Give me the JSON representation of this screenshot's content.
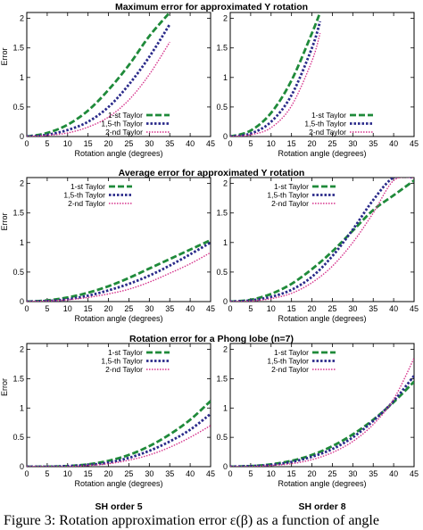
{
  "caption": "Figure 3: Rotation approximation error ε(β) as a function of angle",
  "colors": {
    "taylor1": "#1f8a3a",
    "taylor15": "#2a2a8a",
    "taylor2": "#d6338c"
  },
  "column_titles": [
    "SH order 5",
    "SH order 8"
  ],
  "chart_data": [
    {
      "type": "line",
      "title": "Maximum error for approximated Y rotation",
      "subtitle": "SH order 5",
      "xlabel": "Rotation angle (degrees)",
      "ylabel": "Error",
      "xlim": [
        0,
        45
      ],
      "ylim": [
        0,
        2.1
      ],
      "xticks": [
        0,
        5,
        10,
        15,
        20,
        25,
        30,
        35,
        40,
        45
      ],
      "yticks": [
        0,
        0.5,
        1,
        1.5,
        2
      ],
      "yticklabels": [
        "0",
        "0.5",
        "1",
        "1.5",
        "2"
      ],
      "legend_position": "bottom-right",
      "x": [
        0,
        5,
        10,
        15,
        20,
        25,
        30,
        35
      ],
      "series": [
        {
          "name": "1-st Taylor",
          "values": [
            0,
            0.06,
            0.2,
            0.44,
            0.79,
            1.21,
            1.7,
            2.1
          ]
        },
        {
          "name": "1,5-th Taylor",
          "values": [
            0,
            0.03,
            0.11,
            0.25,
            0.5,
            0.88,
            1.35,
            1.9
          ]
        },
        {
          "name": "2-nd Taylor",
          "values": [
            0,
            0.02,
            0.06,
            0.16,
            0.33,
            0.62,
            1.05,
            1.6
          ]
        }
      ]
    },
    {
      "type": "line",
      "title": "",
      "subtitle": "SH order 8",
      "xlabel": "Rotation angle (degrees)",
      "ylabel": "",
      "xlim": [
        0,
        45
      ],
      "ylim": [
        0,
        2.1
      ],
      "xticks": [
        0,
        5,
        10,
        15,
        20,
        25,
        30,
        35,
        40,
        45
      ],
      "yticks": [
        0,
        0.5,
        1,
        1.5,
        2
      ],
      "yticklabels": [
        "0",
        "0.5",
        "1",
        "1.5",
        "2"
      ],
      "legend_position": "bottom-right",
      "x": [
        0,
        5,
        10,
        15,
        20,
        22
      ],
      "series": [
        {
          "name": "1-st Taylor",
          "values": [
            0,
            0.1,
            0.4,
            0.95,
            1.75,
            2.1
          ]
        },
        {
          "name": "1,5-th Taylor",
          "values": [
            0,
            0.05,
            0.25,
            0.7,
            1.5,
            1.95
          ]
        },
        {
          "name": "2-nd Taylor",
          "values": [
            0,
            0.03,
            0.15,
            0.52,
            1.28,
            1.75
          ]
        }
      ]
    },
    {
      "type": "line",
      "title": "Average error for approximated Y rotation",
      "subtitle": "SH order 5",
      "xlabel": "Rotation angle (degrees)",
      "ylabel": "Error",
      "xlim": [
        0,
        45
      ],
      "ylim": [
        0,
        2.1
      ],
      "xticks": [
        0,
        5,
        10,
        15,
        20,
        25,
        30,
        35,
        40,
        45
      ],
      "yticks": [
        0,
        0.5,
        1,
        1.5,
        2
      ],
      "yticklabels": [
        "0",
        "0.5",
        "1",
        "1.5",
        "2"
      ],
      "legend_position": "top-left",
      "x": [
        0,
        5,
        10,
        15,
        20,
        25,
        30,
        35,
        40,
        45
      ],
      "series": [
        {
          "name": "1-st Taylor",
          "values": [
            0,
            0.02,
            0.07,
            0.15,
            0.26,
            0.4,
            0.56,
            0.72,
            0.88,
            1.04
          ]
        },
        {
          "name": "1,5-th Taylor",
          "values": [
            0,
            0.01,
            0.04,
            0.1,
            0.19,
            0.3,
            0.44,
            0.61,
            0.8,
            1.0
          ]
        },
        {
          "name": "2-nd Taylor",
          "values": [
            0,
            0.01,
            0.03,
            0.07,
            0.13,
            0.21,
            0.33,
            0.48,
            0.64,
            0.83
          ]
        }
      ]
    },
    {
      "type": "line",
      "title": "",
      "subtitle": "SH order 8",
      "xlabel": "Rotation angle (degrees)",
      "ylabel": "",
      "xlim": [
        0,
        45
      ],
      "ylim": [
        0,
        2.1
      ],
      "xticks": [
        0,
        5,
        10,
        15,
        20,
        25,
        30,
        35,
        40,
        45
      ],
      "yticks": [
        0,
        0.5,
        1,
        1.5,
        2
      ],
      "yticklabels": [
        "0",
        "0.5",
        "1",
        "1.5",
        "2"
      ],
      "legend_position": "top-left",
      "x": [
        0,
        5,
        10,
        15,
        20,
        25,
        30,
        35,
        40,
        45
      ],
      "series": [
        {
          "name": "1-st Taylor",
          "values": [
            0,
            0.03,
            0.13,
            0.3,
            0.55,
            0.85,
            1.2,
            1.55,
            1.8,
            2.05
          ]
        },
        {
          "name": "1,5-th Taylor",
          "values": [
            0,
            0.02,
            0.08,
            0.2,
            0.42,
            0.77,
            1.22,
            1.72,
            2.1,
            2.1
          ]
        },
        {
          "name": "2-nd Taylor",
          "values": [
            0,
            0.01,
            0.05,
            0.14,
            0.32,
            0.6,
            1.0,
            1.5,
            2.05,
            2.1
          ]
        }
      ]
    },
    {
      "type": "line",
      "title": "Rotation error for a Phong lobe (n=7)",
      "subtitle": "SH order 5",
      "xlabel": "Rotation angle (degrees)",
      "ylabel": "Error",
      "xlim": [
        0,
        45
      ],
      "ylim": [
        0,
        2.1
      ],
      "xticks": [
        0,
        5,
        10,
        15,
        20,
        25,
        30,
        35,
        40,
        45
      ],
      "yticks": [
        0,
        0.5,
        1,
        1.5,
        2
      ],
      "yticklabels": [
        "0",
        "0.5",
        "1",
        "1.5",
        "2"
      ],
      "legend_position": "top-right",
      "x": [
        0,
        5,
        10,
        15,
        20,
        25,
        30,
        35,
        40,
        45
      ],
      "series": [
        {
          "name": "1-st Taylor",
          "values": [
            0,
            0.0,
            0.01,
            0.04,
            0.1,
            0.2,
            0.35,
            0.55,
            0.8,
            1.12
          ]
        },
        {
          "name": "1,5-th Taylor",
          "values": [
            0,
            0.0,
            0.01,
            0.03,
            0.07,
            0.15,
            0.27,
            0.43,
            0.63,
            0.9
          ]
        },
        {
          "name": "2-nd Taylor",
          "values": [
            0,
            0.0,
            0.0,
            0.02,
            0.05,
            0.11,
            0.2,
            0.33,
            0.5,
            0.7
          ]
        }
      ]
    },
    {
      "type": "line",
      "title": "",
      "subtitle": "SH order 8",
      "xlabel": "Rotation angle (degrees)",
      "ylabel": "",
      "xlim": [
        0,
        45
      ],
      "ylim": [
        0,
        2.1
      ],
      "xticks": [
        0,
        5,
        10,
        15,
        20,
        25,
        30,
        35,
        40,
        45
      ],
      "yticks": [
        0,
        0.5,
        1,
        1.5,
        2
      ],
      "yticklabels": [
        "0",
        "0.5",
        "1",
        "1.5",
        "2"
      ],
      "legend_position": "top-left",
      "x": [
        0,
        5,
        10,
        15,
        20,
        25,
        30,
        35,
        40,
        45
      ],
      "series": [
        {
          "name": "1-st Taylor",
          "values": [
            0,
            0.01,
            0.04,
            0.1,
            0.2,
            0.35,
            0.55,
            0.8,
            1.1,
            1.45
          ]
        },
        {
          "name": "1,5-th Taylor",
          "values": [
            0,
            0.01,
            0.03,
            0.08,
            0.17,
            0.3,
            0.5,
            0.78,
            1.12,
            1.55
          ]
        },
        {
          "name": "2-nd Taylor",
          "values": [
            0,
            0.0,
            0.02,
            0.05,
            0.12,
            0.24,
            0.43,
            0.72,
            1.15,
            1.85
          ]
        }
      ]
    }
  ]
}
